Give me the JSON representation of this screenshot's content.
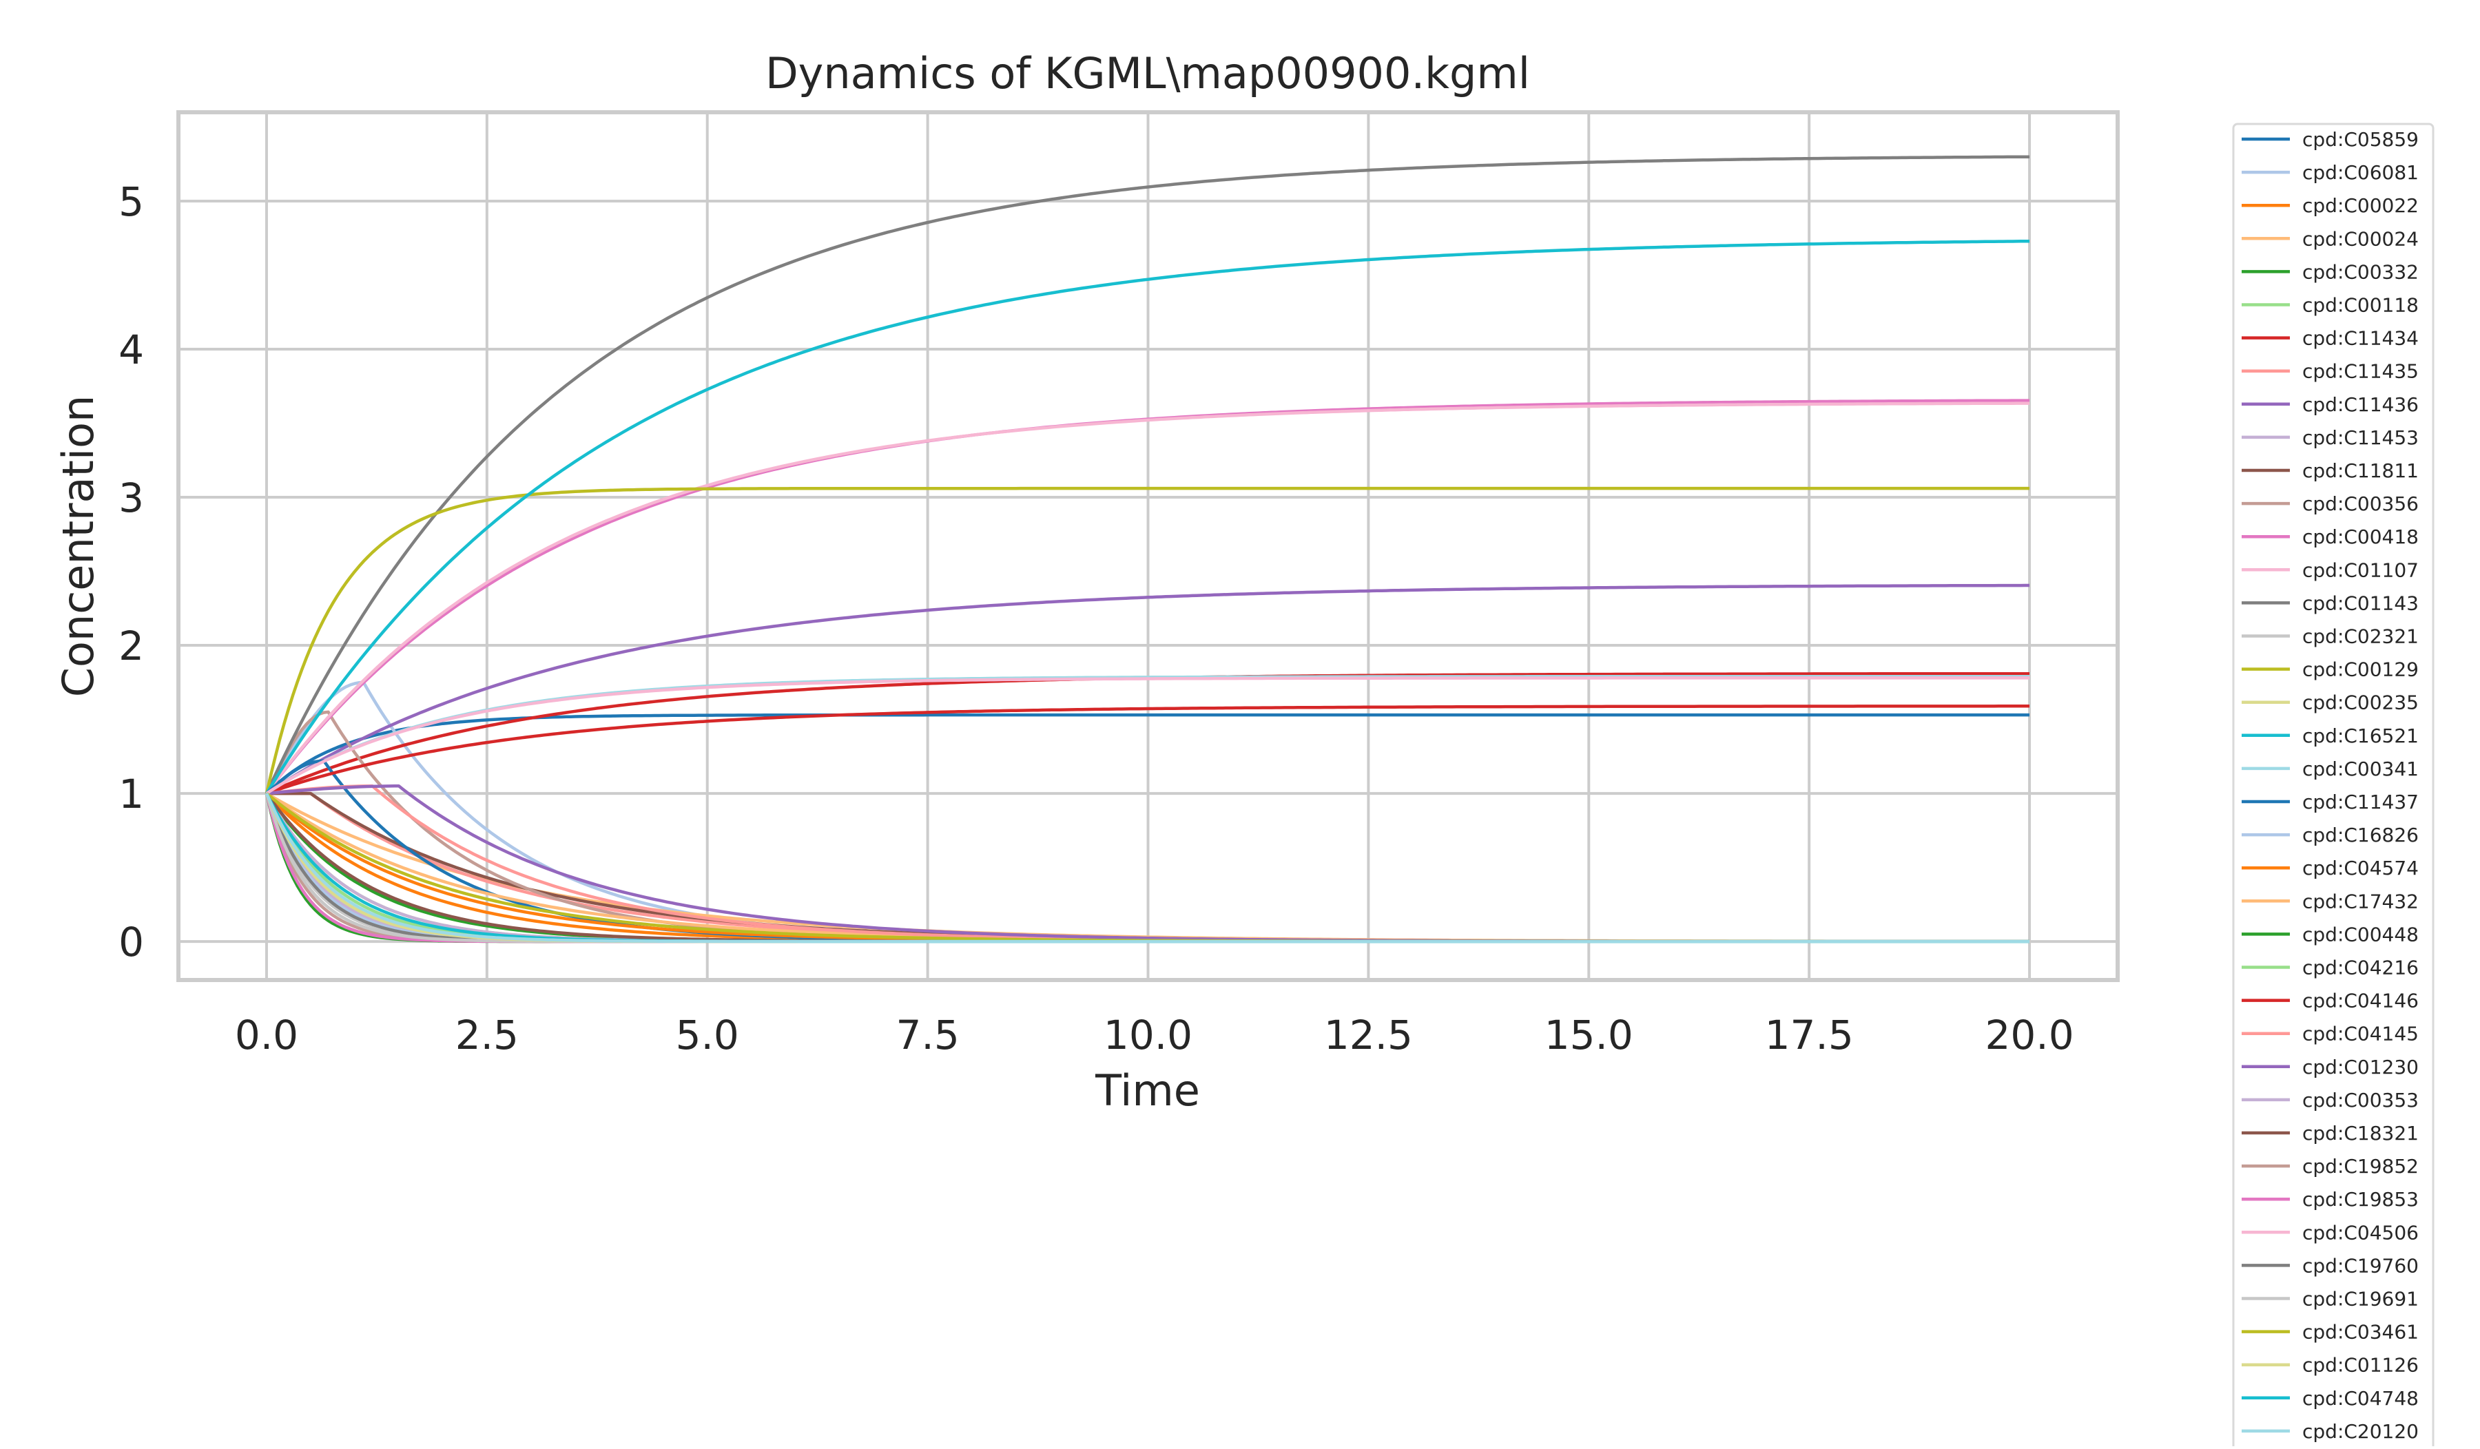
{
  "chart_data": {
    "type": "line",
    "title": "Dynamics of KGML\\map00900.kgml",
    "xlabel": "Time",
    "ylabel": "Concentration",
    "xlim": [
      -1.0,
      21.0
    ],
    "ylim": [
      -0.26,
      5.6
    ],
    "xticks": [
      0,
      2.5,
      5,
      7.5,
      10,
      12.5,
      15,
      17.5,
      20
    ],
    "xtick_labels": [
      "0.0",
      "2.5",
      "5.0",
      "7.5",
      "10.0",
      "12.5",
      "15.0",
      "17.5",
      "20.0"
    ],
    "yticks": [
      0,
      1,
      2,
      3,
      4,
      5
    ],
    "ytick_labels": [
      "0",
      "1",
      "2",
      "3",
      "4",
      "5"
    ],
    "grid": true,
    "legend_position": "outside-right",
    "series": [
      {
        "name": "cpd:C05859",
        "color": "#1f77b4",
        "kind": "rise",
        "final": 1.53,
        "k": 1.1,
        "t0": 0.0
      },
      {
        "name": "cpd:C06081",
        "color": "#aec7e8",
        "kind": "hump",
        "final": 0.0,
        "peak": 1.75,
        "tpeak": 1.1,
        "k": 0.6,
        "t0": 0.0
      },
      {
        "name": "cpd:C00022",
        "color": "#ff7f0e",
        "kind": "decay",
        "final": 0.0,
        "k": 0.65,
        "t0": 0.0
      },
      {
        "name": "cpd:C00024",
        "color": "#ffbb78",
        "kind": "decay",
        "final": 0.0,
        "k": 0.35,
        "t0": 0.0
      },
      {
        "name": "cpd:C00332",
        "color": "#2ca02c",
        "kind": "decay",
        "final": 0.0,
        "k": 2.8,
        "t0": 0.0
      },
      {
        "name": "cpd:C00118",
        "color": "#98df8a",
        "kind": "decay",
        "final": 0.0,
        "k": 1.3,
        "t0": 0.0
      },
      {
        "name": "cpd:C11434",
        "color": "#d62728",
        "kind": "rise",
        "final": 1.81,
        "k": 0.33,
        "t0": 0.0
      },
      {
        "name": "cpd:C11435",
        "color": "#ff9896",
        "kind": "decay",
        "final": 0.0,
        "k": 0.45,
        "t0": 0.5
      },
      {
        "name": "cpd:C11436",
        "color": "#9467bd",
        "kind": "rise",
        "final": 2.41,
        "k": 0.28,
        "t0": 0.0
      },
      {
        "name": "cpd:C11453",
        "color": "#c5b0d5",
        "kind": "decay",
        "final": 0.0,
        "k": 1.6,
        "t0": 0.0
      },
      {
        "name": "cpd:C11811",
        "color": "#8c564b",
        "kind": "decay",
        "final": 0.0,
        "k": 0.42,
        "t0": 0.5
      },
      {
        "name": "cpd:C00356",
        "color": "#c49c94",
        "kind": "hump",
        "final": 0.0,
        "peak": 1.55,
        "tpeak": 0.7,
        "k": 0.65,
        "t0": 0.0
      },
      {
        "name": "cpd:C00418",
        "color": "#e377c2",
        "kind": "rise",
        "final": 3.66,
        "k": 0.3,
        "t0": 0.0
      },
      {
        "name": "cpd:C01107",
        "color": "#f7b6d2",
        "kind": "rise",
        "final": 3.64,
        "k": 0.31,
        "t0": 0.0
      },
      {
        "name": "cpd:C01143",
        "color": "#7f7f7f",
        "kind": "rise",
        "final": 5.31,
        "k": 0.3,
        "t0": 0.0
      },
      {
        "name": "cpd:C02321",
        "color": "#c7c7c7",
        "kind": "decay",
        "final": 0.0,
        "k": 1.9,
        "t0": 0.0
      },
      {
        "name": "cpd:C00129",
        "color": "#bcbd22",
        "kind": "rise",
        "final": 3.06,
        "k": 1.3,
        "t0": 0.0
      },
      {
        "name": "cpd:C00235",
        "color": "#dbdb8d",
        "kind": "decay",
        "final": 0.0,
        "k": 1.1,
        "t0": 0.0
      },
      {
        "name": "cpd:C16521",
        "color": "#17becf",
        "kind": "rise",
        "final": 4.75,
        "k": 0.26,
        "t0": 0.0
      },
      {
        "name": "cpd:C00341",
        "color": "#9edae5",
        "kind": "rise",
        "final": 1.79,
        "k": 0.5,
        "t0": 0.0
      },
      {
        "name": "cpd:C11437",
        "color": "#1f77b4",
        "kind": "hump",
        "final": 0.0,
        "peak": 1.22,
        "tpeak": 0.65,
        "k": 0.7,
        "t0": 0.0
      },
      {
        "name": "cpd:C16826",
        "color": "#aec7e8",
        "kind": "decay",
        "final": 0.0,
        "k": 1.7,
        "t0": 0.0
      },
      {
        "name": "cpd:C04574",
        "color": "#ff7f0e",
        "kind": "decay",
        "final": 0.0,
        "k": 0.55,
        "t0": 0.0
      },
      {
        "name": "cpd:C17432",
        "color": "#ffbb78",
        "kind": "decay",
        "final": 0.0,
        "k": 0.45,
        "t0": 0.0
      },
      {
        "name": "cpd:C00448",
        "color": "#2ca02c",
        "kind": "decay",
        "final": 0.0,
        "k": 0.9,
        "t0": 0.0
      },
      {
        "name": "cpd:C04216",
        "color": "#98df8a",
        "kind": "decay",
        "final": 0.0,
        "k": 1.3,
        "t0": 0.0
      },
      {
        "name": "cpd:C04146",
        "color": "#d62728",
        "kind": "rise",
        "final": 1.59,
        "k": 0.35,
        "t0": 0.0
      },
      {
        "name": "cpd:C04145",
        "color": "#ff9896",
        "kind": "hump",
        "final": 0.0,
        "peak": 1.05,
        "tpeak": 1.2,
        "k": 0.5,
        "t0": 0.0
      },
      {
        "name": "cpd:C01230",
        "color": "#9467bd",
        "kind": "hump",
        "final": 0.0,
        "peak": 1.05,
        "tpeak": 1.5,
        "k": 0.45,
        "t0": 0.0
      },
      {
        "name": "cpd:C00353",
        "color": "#c5b0d5",
        "kind": "decay",
        "final": 0.0,
        "k": 1.1,
        "t0": 0.0
      },
      {
        "name": "cpd:C18321",
        "color": "#8c564b",
        "kind": "decay",
        "final": 0.0,
        "k": 0.85,
        "t0": 0.0
      },
      {
        "name": "cpd:C19852",
        "color": "#c49c94",
        "kind": "decay",
        "final": 0.0,
        "k": 2.3,
        "t0": 0.0
      },
      {
        "name": "cpd:C19853",
        "color": "#e377c2",
        "kind": "decay",
        "final": 0.0,
        "k": 2.6,
        "t0": 0.0
      },
      {
        "name": "cpd:C04506",
        "color": "#f7b6d2",
        "kind": "rise",
        "final": 1.78,
        "k": 0.5,
        "t0": 0.0
      },
      {
        "name": "cpd:C19760",
        "color": "#7f7f7f",
        "kind": "decay",
        "final": 0.0,
        "k": 1.8,
        "t0": 0.0
      },
      {
        "name": "cpd:C19691",
        "color": "#c7c7c7",
        "kind": "decay",
        "final": 0.0,
        "k": 2.1,
        "t0": 0.0
      },
      {
        "name": "cpd:C03461",
        "color": "#bcbd22",
        "kind": "decay",
        "final": 0.0,
        "k": 0.5,
        "t0": 0.0
      },
      {
        "name": "cpd:C01126",
        "color": "#dbdb8d",
        "kind": "decay",
        "final": 0.0,
        "k": 1.5,
        "t0": 0.0
      },
      {
        "name": "cpd:C04748",
        "color": "#17becf",
        "kind": "decay",
        "final": 0.0,
        "k": 1.2,
        "t0": 0.0
      },
      {
        "name": "cpd:C20120",
        "color": "#9edae5",
        "kind": "decay",
        "final": 0.0,
        "k": 1.4,
        "t0": 0.0
      }
    ]
  }
}
